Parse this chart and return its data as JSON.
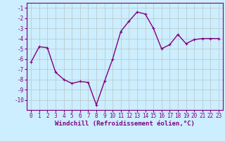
{
  "x": [
    0,
    1,
    2,
    3,
    4,
    5,
    6,
    7,
    8,
    9,
    10,
    11,
    12,
    13,
    14,
    15,
    16,
    17,
    18,
    19,
    20,
    21,
    22,
    23
  ],
  "y": [
    -6.3,
    -4.8,
    -4.9,
    -7.3,
    -8.0,
    -8.4,
    -8.2,
    -8.3,
    -10.5,
    -8.2,
    -6.0,
    -3.3,
    -2.3,
    -1.4,
    -1.6,
    -3.0,
    -5.0,
    -4.6,
    -3.6,
    -4.5,
    -4.1,
    -4.0,
    -4.0,
    -4.0
  ],
  "line_color": "#800080",
  "marker": "+",
  "marker_size": 3,
  "bg_color": "#cceeff",
  "grid_color": "#bbcccc",
  "xlabel": "Windchill (Refroidissement éolien,°C)",
  "xlabel_color": "#800080",
  "xlabel_fontsize": 6.5,
  "xlim": [
    -0.5,
    23.5
  ],
  "ylim": [
    -11,
    -0.5
  ],
  "yticks": [
    -10,
    -9,
    -8,
    -7,
    -6,
    -5,
    -4,
    -3,
    -2,
    -1
  ],
  "xticks": [
    0,
    1,
    2,
    3,
    4,
    5,
    6,
    7,
    8,
    9,
    10,
    11,
    12,
    13,
    14,
    15,
    16,
    17,
    18,
    19,
    20,
    21,
    22,
    23
  ],
  "tick_fontsize": 5.5,
  "line_width": 1.0,
  "border_color": "#800080"
}
